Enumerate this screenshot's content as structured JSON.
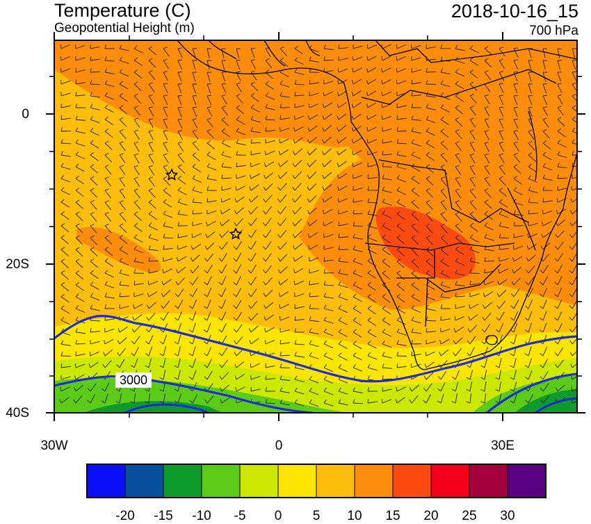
{
  "header": {
    "title_left": "Temperature (C)",
    "subtitle_left": "Geopotential Height (m)",
    "title_right": "2018-10-16_15",
    "subtitle_right": "700 hPa"
  },
  "axes": {
    "lat_labels": [
      "0",
      "20S",
      "40S"
    ],
    "lon_labels": [
      "30W",
      "0",
      "30E"
    ]
  },
  "contour": {
    "label": "3000",
    "color": "#1f2bd6"
  },
  "markers": [
    "star",
    "star"
  ],
  "colorbar": {
    "labels": [
      "-20",
      "-15",
      "-10",
      "-5",
      "0",
      "5",
      "10",
      "15",
      "20",
      "25",
      "30"
    ],
    "colors": [
      "#0a12f5",
      "#06509e",
      "#0d9b2b",
      "#5ccb17",
      "#cce800",
      "#f9e500",
      "#fcbd0c",
      "#fc8c0c",
      "#fc4a10",
      "#f3001a",
      "#a0013d",
      "#5a0080"
    ]
  }
}
